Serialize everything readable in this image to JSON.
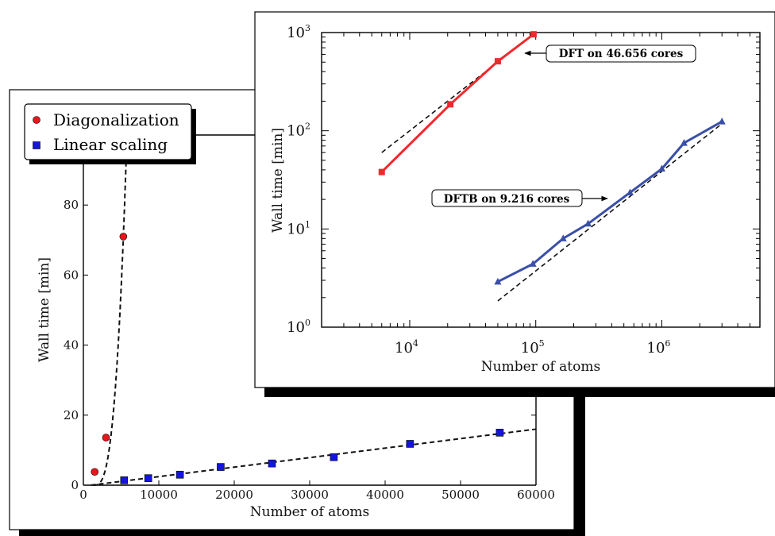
{
  "colors": {
    "diagonalization": "#e8161b",
    "linear_scaling": "#1414e0",
    "dft": "#ee2a2e",
    "dftb": "#3a4fa8",
    "fit": "#111111"
  },
  "chart_data": [
    {
      "id": "linear",
      "type": "scatter",
      "title": "",
      "xlabel": "Number of atoms",
      "ylabel": "Wall time [min]",
      "xlim": [
        0,
        60000
      ],
      "ylim": [
        0,
        100
      ],
      "xticks": [
        "0",
        "10000",
        "20000",
        "30000",
        "40000",
        "50000",
        "60000"
      ],
      "yticks": [
        "0",
        "20",
        "40",
        "60",
        "80"
      ],
      "legend": {
        "placement": "top-left",
        "entries": [
          "Diagonalization",
          "Linear scaling"
        ]
      },
      "series": [
        {
          "name": "Diagonalization",
          "marker": "circle",
          "x": [
            1500,
            3000,
            5300
          ],
          "y": [
            3.8,
            13.6,
            71.0
          ]
        },
        {
          "name": "Linear scaling",
          "marker": "square",
          "x": [
            5400,
            8600,
            12800,
            18200,
            25000,
            33200,
            43300,
            55200
          ],
          "y": [
            1.4,
            2.0,
            3.0,
            5.2,
            6.2,
            8.0,
            11.8,
            15.0
          ]
        }
      ],
      "fits": [
        {
          "for": "Diagonalization",
          "form": "cubic",
          "x_range": [
            1350,
            10000
          ]
        },
        {
          "for": "Linear scaling",
          "form": "linear",
          "x_range": [
            1000,
            60000
          ],
          "y_range": [
            0,
            16
          ]
        }
      ]
    },
    {
      "id": "log",
      "type": "line",
      "title": "",
      "xlabel": "Number of atoms",
      "ylabel": "Wall time [min]",
      "xscale": "log",
      "yscale": "log",
      "xlim": [
        2000,
        6000000
      ],
      "ylim": [
        1,
        1000
      ],
      "xticks": [
        {
          "base": "10",
          "exp": "4"
        },
        {
          "base": "10",
          "exp": "5"
        },
        {
          "base": "10",
          "exp": "6"
        }
      ],
      "yticks": [
        {
          "base": "10",
          "exp": "0"
        },
        {
          "base": "10",
          "exp": "1"
        },
        {
          "base": "10",
          "exp": "2"
        },
        {
          "base": "10",
          "exp": "3"
        }
      ],
      "series": [
        {
          "name": "DFT",
          "marker": "square",
          "x": [
            6000,
            21000,
            50000,
            96000
          ],
          "y": [
            38,
            186,
            510,
            960
          ]
        },
        {
          "name": "DFTB",
          "marker": "triangle",
          "x": [
            50000,
            95000,
            165000,
            260000,
            560000,
            1000000,
            1500000,
            3000000
          ],
          "y": [
            2.9,
            4.4,
            8.0,
            11.3,
            23.5,
            41,
            75,
            124
          ]
        }
      ],
      "fits": [
        {
          "for": "DFT",
          "x_range": [
            6000,
            96000
          ],
          "y_range": [
            60,
            960
          ]
        },
        {
          "for": "DFTB",
          "x_range": [
            50000,
            3000000
          ],
          "y_range": [
            1.85,
            118
          ]
        }
      ],
      "annotations": [
        {
          "text": "DFT on 46.656 cores",
          "target_series": "DFT"
        },
        {
          "text": "DFTB on 9.216 cores",
          "target_series": "DFTB"
        }
      ]
    }
  ]
}
